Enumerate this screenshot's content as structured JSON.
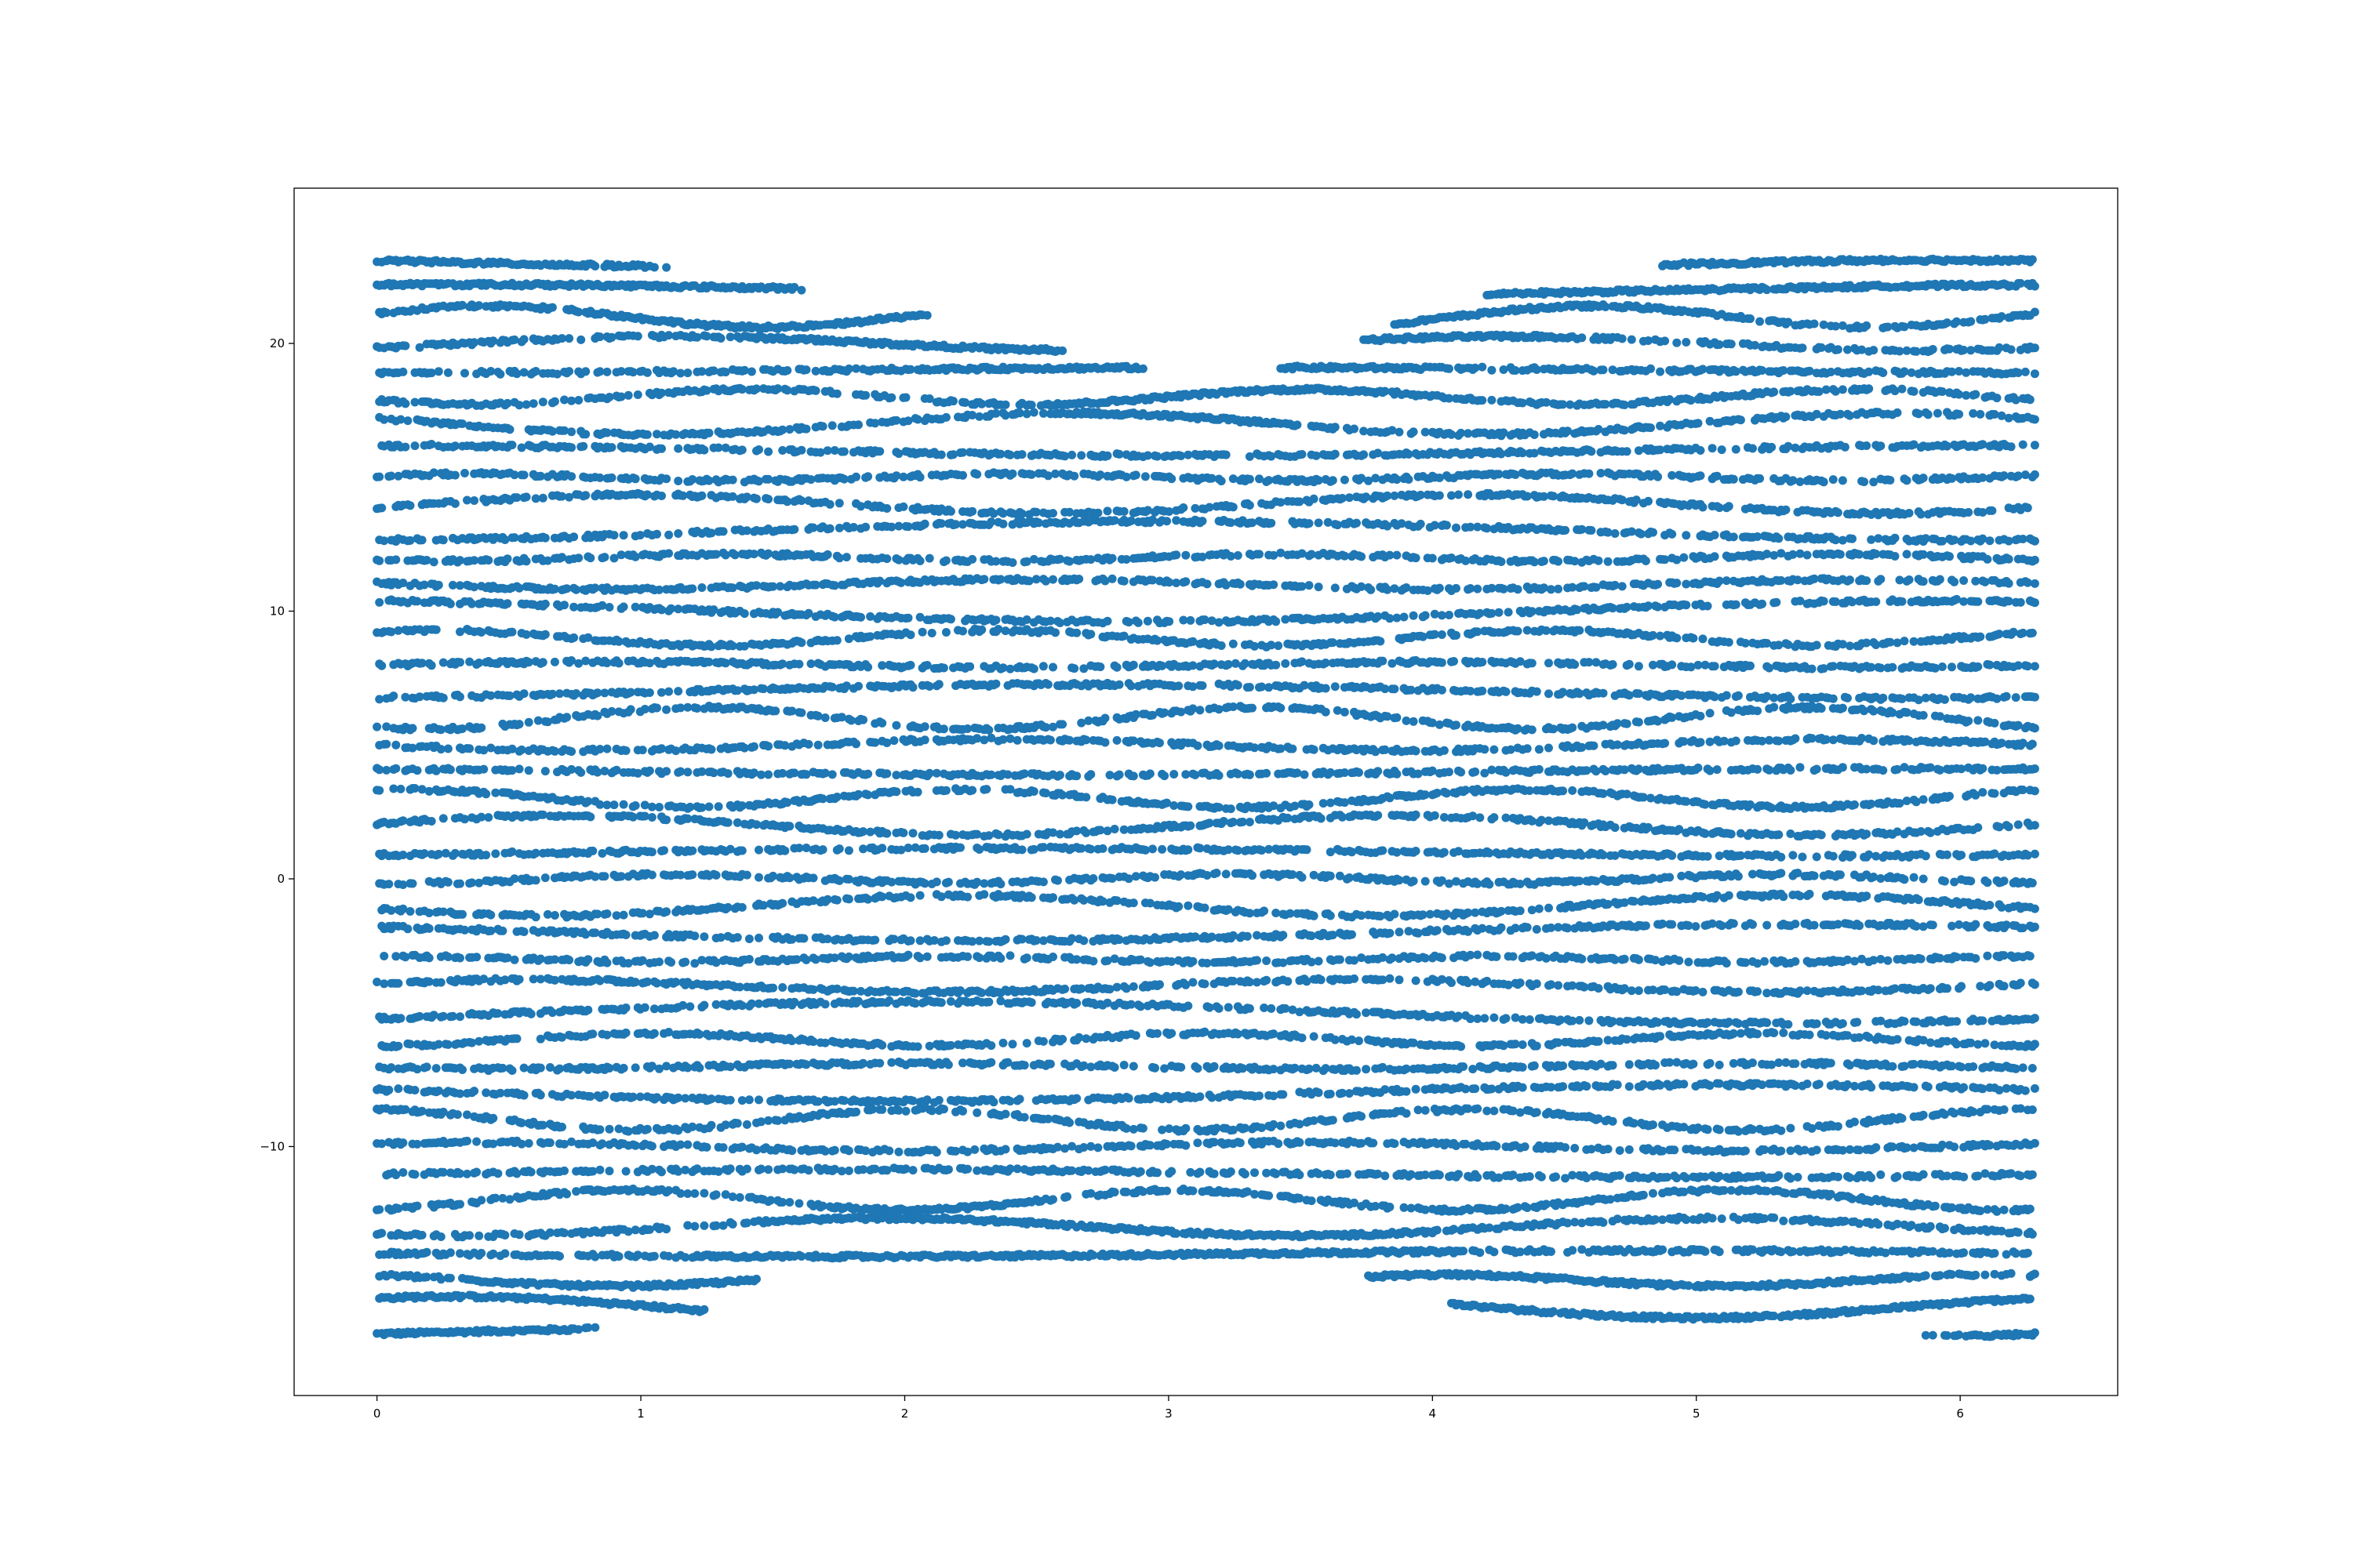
{
  "chart_data": {
    "type": "scatter",
    "title": "",
    "xlabel": "",
    "ylabel": "",
    "xlim": [
      -0.314,
      6.597
    ],
    "ylim": [
      -19.3,
      25.8
    ],
    "x_ticks": [
      0,
      1,
      2,
      3,
      4,
      5,
      6
    ],
    "x_tick_labels": [
      "0",
      "1",
      "2",
      "3",
      "4",
      "5",
      "6"
    ],
    "y_ticks": [
      -10,
      0,
      10,
      20
    ],
    "y_tick_labels": [
      "−10",
      "0",
      "10",
      "20"
    ],
    "grid": false,
    "legend": "none",
    "marker_color": "#1f77b4",
    "series": [
      {
        "description_of_structure": "points lie on roughly horizontal bands (each band y = level + 0.8*sin(t)*amplitude); band level spacing ~1.02; bands exist only inside an hourglass-shaped envelope",
        "band_levels": [
          -17.0,
          -16.0,
          -15.0,
          -14.0,
          -13.0,
          -12.0,
          -11.0,
          -10.0,
          -9.0,
          -8.0,
          -7.0,
          -6.0,
          -5.0,
          -4.0,
          -3.0,
          -2.0,
          -1.0,
          0.0,
          1.0,
          2.0,
          3.0,
          4.0,
          5.0,
          6.0,
          7.0,
          8.0,
          9.0,
          10.0,
          11.0,
          12.0,
          13.0,
          14.0,
          15.0,
          16.0,
          17.0,
          18.0,
          19.0,
          20.0,
          21.0,
          22.0,
          23.0
        ],
        "x_range": [
          0,
          6.283
        ],
        "upper_envelope": [
          [
            0.0,
            23.6
          ],
          [
            0.7,
            23.3
          ],
          [
            1.3,
            22.4
          ],
          [
            1.8,
            21.6
          ],
          [
            2.3,
            20.4
          ],
          [
            2.7,
            19.3
          ],
          [
            3.1,
            18.6
          ],
          [
            3.4,
            18.9
          ],
          [
            3.7,
            19.8
          ],
          [
            4.0,
            21.3
          ],
          [
            4.5,
            22.2
          ],
          [
            5.1,
            23.2
          ],
          [
            5.6,
            23.6
          ],
          [
            6.283,
            23.6
          ]
        ],
        "lower_envelope": [
          [
            0.0,
            -17.0
          ],
          [
            0.5,
            -17.0
          ],
          [
            1.2,
            -16.2
          ],
          [
            1.5,
            -14.5
          ],
          [
            2.0,
            -14.0
          ],
          [
            3.0,
            -14.0
          ],
          [
            3.6,
            -14.2
          ],
          [
            4.0,
            -15.5
          ],
          [
            4.3,
            -16.5
          ],
          [
            5.0,
            -16.7
          ],
          [
            6.283,
            -17.0
          ]
        ]
      }
    ]
  }
}
